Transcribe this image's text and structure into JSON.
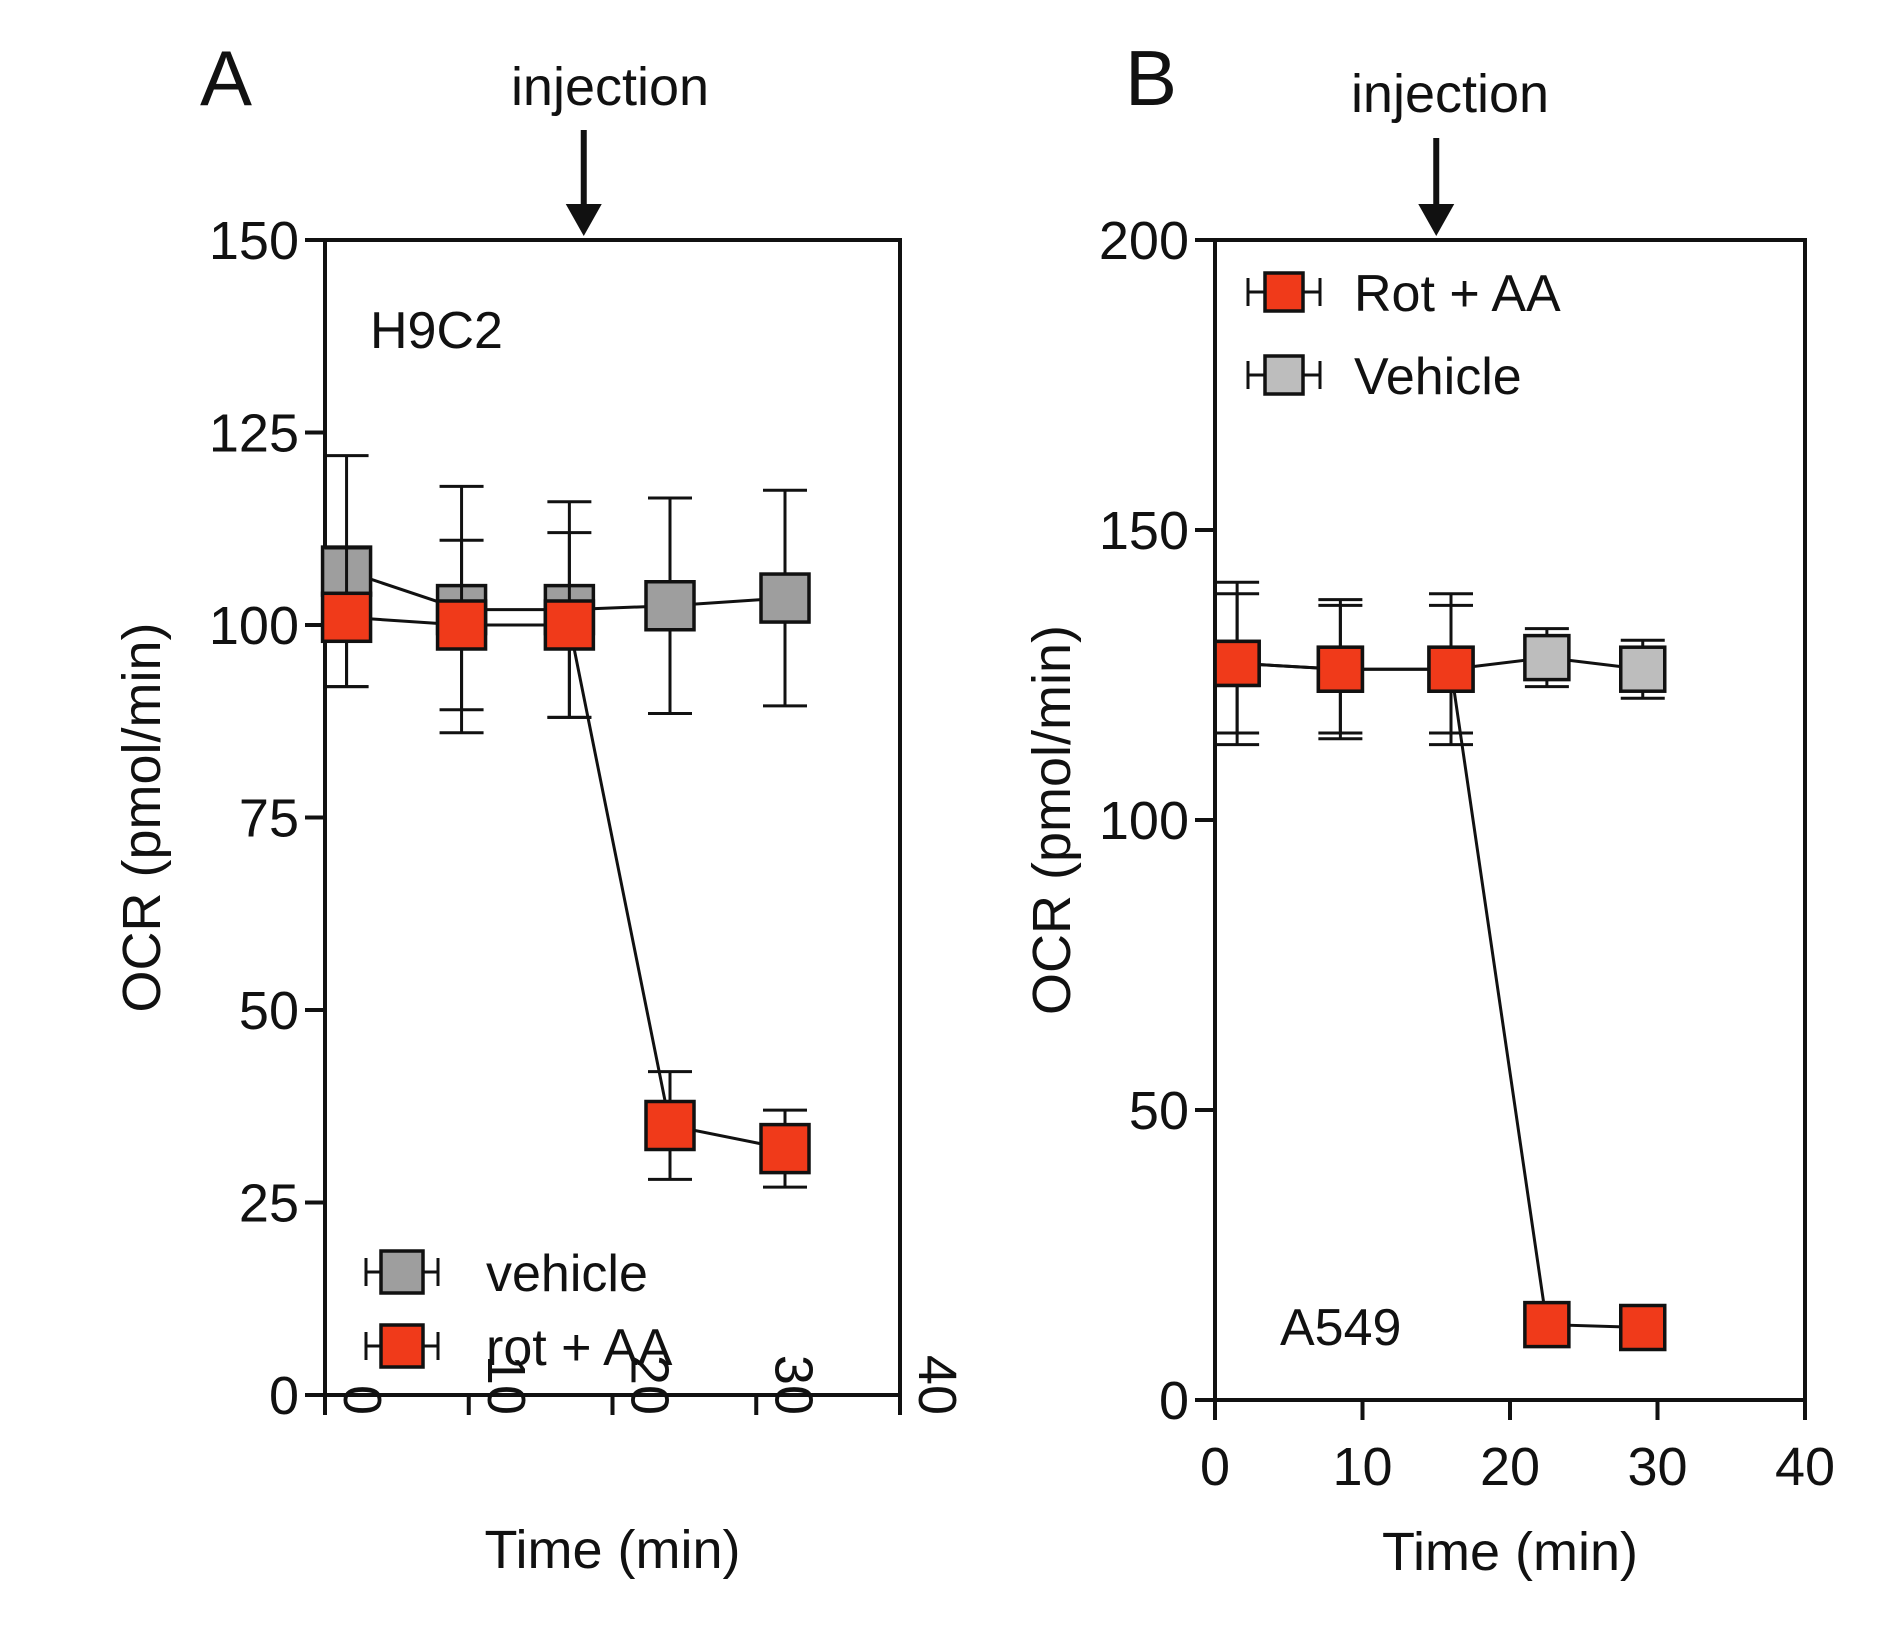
{
  "chart_data": [
    {
      "type": "line",
      "panel": "A",
      "cell_line": "H9C2",
      "annotation": "injection",
      "injection_x": 18,
      "xlabel": "Time (min)",
      "ylabel": "OCR (pmol/min)",
      "xlim": [
        0,
        40
      ],
      "ylim": [
        0,
        150
      ],
      "xticks": [
        "0",
        "10",
        "20",
        "30",
        "40"
      ],
      "yticks": [
        "0",
        "25",
        "50",
        "75",
        "100",
        "125",
        "150"
      ],
      "xtick_rotation": "vertical",
      "legend_position": "bottom-left",
      "series": [
        {
          "name": "vehicle",
          "color": "#9e9e9e",
          "x": [
            1.5,
            9.5,
            17,
            24,
            32
          ],
          "y": [
            107,
            102,
            102,
            102.5,
            103.5
          ],
          "error": [
            15,
            16,
            14,
            14,
            14
          ]
        },
        {
          "name": "rot + AA",
          "color": "#f03a1a",
          "x": [
            1.5,
            9.5,
            17,
            24,
            32
          ],
          "y": [
            101,
            100,
            100,
            35,
            32
          ],
          "error": [
            9,
            11,
            12,
            7,
            5
          ]
        }
      ],
      "legend_order": [
        "vehicle",
        "rot + AA"
      ]
    },
    {
      "type": "line",
      "panel": "B",
      "cell_line": "A549",
      "annotation": "injection",
      "injection_x": 15,
      "xlabel": "Time (min)",
      "ylabel": "OCR (pmol/min)",
      "xlim": [
        0,
        40
      ],
      "ylim": [
        0,
        200
      ],
      "xticks": [
        "0",
        "10",
        "20",
        "30",
        "40"
      ],
      "yticks": [
        "0",
        "50",
        "100",
        "150",
        "200"
      ],
      "xtick_rotation": "horizontal",
      "legend_position": "top-left",
      "series": [
        {
          "name": "Rot + AA",
          "color": "#f03a1a",
          "x": [
            1.5,
            8.5,
            16,
            22.5,
            29
          ],
          "y": [
            127,
            126,
            126,
            13,
            12.5
          ],
          "error": [
            14,
            12,
            13,
            0,
            0
          ]
        },
        {
          "name": "Vehicle",
          "color": "#bdbdbd",
          "x": [
            1.5,
            8.5,
            16,
            22.5,
            29
          ],
          "y": [
            127,
            126,
            126,
            128,
            126
          ],
          "error": [
            12,
            11,
            11,
            5,
            5
          ]
        }
      ],
      "legend_order": [
        "Rot + AA",
        "Vehicle"
      ]
    }
  ]
}
